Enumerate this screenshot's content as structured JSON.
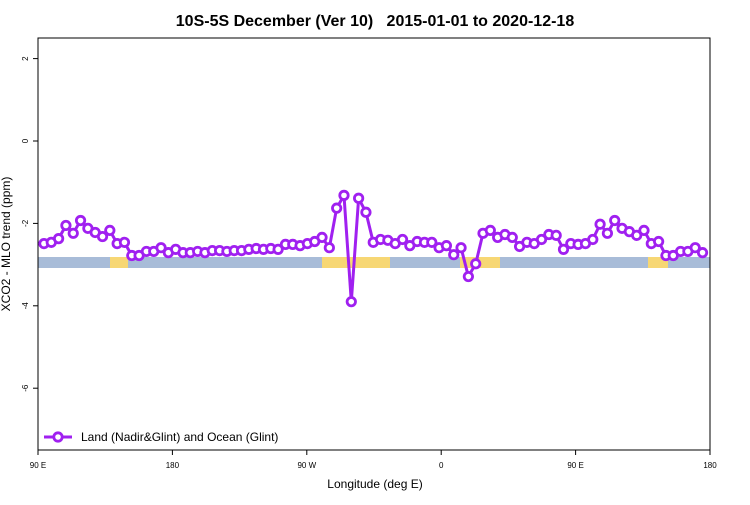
{
  "chart_data": {
    "type": "line",
    "title": "10S-5S December (Ver 10)   2015-01-01 to 2020-12-18",
    "x_label": "Longitude (deg E)",
    "y_label": "XCO2 - MLO trend (ppm)",
    "xlim": [
      90,
      540
    ],
    "xticks": [
      {
        "value": 90,
        "label": "90 E"
      },
      {
        "value": 180,
        "label": "180"
      },
      {
        "value": 270,
        "label": "90 W"
      },
      {
        "value": 360,
        "label": "0"
      },
      {
        "value": 450,
        "label": "90 E"
      },
      {
        "value": 540,
        "label": "180"
      }
    ],
    "ylim": [
      -7.5,
      2.5
    ],
    "yticks": [
      -6,
      -4,
      -2,
      0,
      2
    ],
    "grid": false,
    "legend": "bottom-left",
    "x": [
      94,
      98.9,
      103.8,
      108.7,
      113.6,
      118.5,
      123.4,
      128.3,
      133.2,
      138.1,
      143,
      147.9,
      152.8,
      157.7,
      162.6,
      167.5,
      172.4,
      177.3,
      182.2,
      187.1,
      192,
      196.9,
      201.8,
      206.7,
      211.6,
      216.5,
      221.4,
      226.3,
      231.2,
      236.1,
      241,
      245.9,
      250.8,
      255.7,
      260.6,
      265.5,
      270.4,
      275.3,
      280.2,
      285.1,
      290,
      294.9,
      299.8,
      304.7,
      309.6,
      314.5,
      319.4,
      324.3,
      329.2,
      334.1,
      339,
      343.9,
      348.8,
      353.7,
      358.6,
      363.5,
      368.4,
      373.3,
      378.2,
      383.1,
      388,
      392.9,
      397.8,
      402.7,
      407.6,
      412.5,
      417.4,
      422.3,
      427.2,
      432.1,
      437,
      441.9,
      446.8,
      451.7,
      456.6,
      461.5,
      466.4,
      471.3,
      476.2,
      481.1,
      486,
      490.9,
      495.8,
      500.7,
      505.6,
      510.5,
      515.4,
      520.3,
      525.2,
      530.1,
      535
    ],
    "series": [
      {
        "name": "Land (Nadir&Glint) and Ocean (Glint)",
        "color": "#a020f0",
        "values": [
          -2.49,
          -2.46,
          -2.37,
          -2.05,
          -2.24,
          -1.93,
          -2.12,
          -2.22,
          -2.32,
          -2.17,
          -2.49,
          -2.46,
          -2.78,
          -2.78,
          -2.68,
          -2.68,
          -2.59,
          -2.71,
          -2.63,
          -2.71,
          -2.71,
          -2.68,
          -2.71,
          -2.66,
          -2.66,
          -2.68,
          -2.66,
          -2.66,
          -2.63,
          -2.61,
          -2.63,
          -2.61,
          -2.63,
          -2.51,
          -2.51,
          -2.54,
          -2.49,
          -2.44,
          -2.34,
          -2.59,
          -1.63,
          -1.32,
          -3.9,
          -1.39,
          -1.73,
          -2.46,
          -2.39,
          -2.41,
          -2.49,
          -2.39,
          -2.54,
          -2.44,
          -2.46,
          -2.46,
          -2.59,
          -2.54,
          -2.76,
          -2.59,
          -3.29,
          -2.98,
          -2.24,
          -2.17,
          -2.34,
          -2.27,
          -2.34,
          -2.56,
          -2.46,
          -2.49,
          -2.39,
          -2.27,
          -2.29,
          -2.63,
          -2.49,
          -2.51,
          -2.49,
          -2.39,
          -2.02,
          -2.24,
          -1.93,
          -2.12,
          -2.2,
          -2.29,
          -2.17,
          -2.49,
          -2.44,
          -2.78,
          -2.78,
          -2.68,
          -2.68,
          -2.59,
          -2.71
        ]
      }
    ]
  }
}
